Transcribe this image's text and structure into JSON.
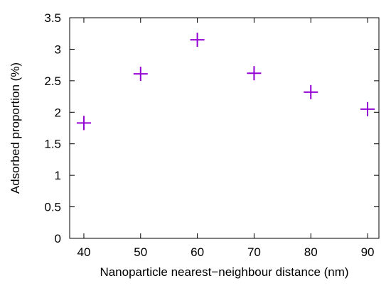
{
  "chart_data": {
    "type": "scatter",
    "xlabel": "Nanoparticle nearest−neighbour distance (nm)",
    "ylabel": "Adsorbed proportion (%)",
    "xlim": [
      37.5,
      92
    ],
    "ylim": [
      0,
      3.5
    ],
    "xticks": [
      40,
      50,
      60,
      70,
      80,
      90
    ],
    "xtick_labels": [
      "40",
      "50",
      "60",
      "70",
      "80",
      "90"
    ],
    "yticks": [
      0,
      0.5,
      1,
      1.5,
      2,
      2.5,
      3,
      3.5
    ],
    "ytick_labels": [
      "0",
      "0.5",
      "1",
      "1.5",
      "2",
      "2.5",
      "3",
      "3.5"
    ],
    "grid": false,
    "legend": "none",
    "marker": "plus",
    "color": "#9400D3",
    "series": [
      {
        "x": [
          40,
          50,
          60,
          70,
          80,
          90
        ],
        "values": [
          1.83,
          2.61,
          3.15,
          2.62,
          2.32,
          2.05
        ]
      }
    ]
  }
}
